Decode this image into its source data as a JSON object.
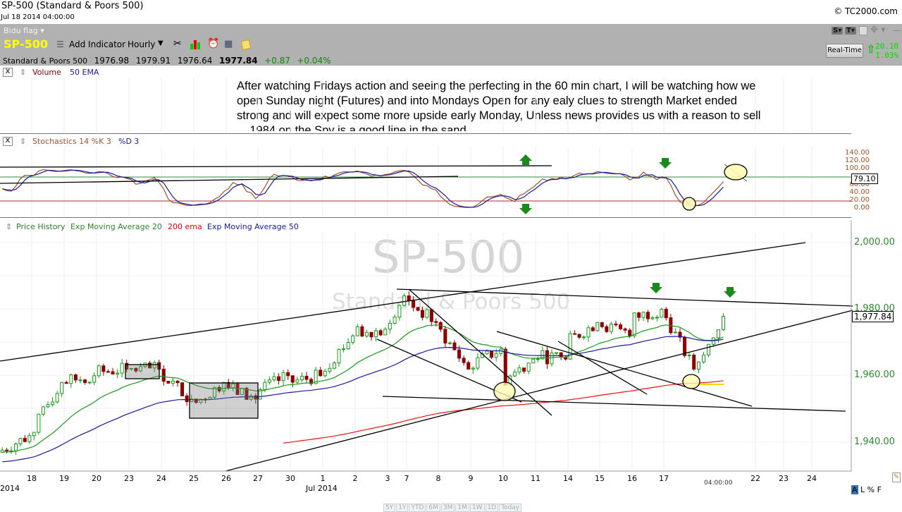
{
  "header": {
    "title": "SP-500 (Standard & Poors 500)",
    "datetime": "Jul 18 2014 04:00:00",
    "copyright": "© TC2000.com"
  },
  "toolbar": {
    "layout": "Bidu flag ▾",
    "symbol": "SP-500",
    "add_indicator": "Add Indicator",
    "timeframe": "Hourly",
    "realtime": "Real-Time",
    "change_pts": "20.10",
    "change_pct": "1.03%",
    "s_btn": "S▾",
    "t_btn": "T▾"
  },
  "quote": {
    "name": "Standard & Poors 500",
    "open": "1976.98",
    "high": "1979.91",
    "low": "1976.64",
    "last": "1977.84",
    "change": "+0.87",
    "change_pct": "+0.04%"
  },
  "volume_pane": {
    "label": "Volume",
    "ema": "50 EMA"
  },
  "note": "After watching Fridays action and seeing the perfecting in the 60 min chart, I will be watching how we open Sunday night (Futures) and into Mondays  Open for any ealy clues to strength Market ended strong and will expect some more upside early Monday, Unless news provides us with a reason to sell ... 1984 on the Spy is a good line in the sand",
  "stoch_pane": {
    "label": "Stochastics 14 %K 3",
    "d_label": "%D 3",
    "ticks": [
      "140.00",
      "120.00",
      "100.00",
      "60.00",
      "40.00",
      "20.00",
      "0.00"
    ],
    "current": "79.10",
    "colors": {
      "k": "#a0522d",
      "d": "#1a1aa0"
    }
  },
  "price_pane": {
    "label": "Price History",
    "ema20": "Exp Moving Average 20",
    "ema200": "200 ema",
    "ema50": "Exp Moving Average 50",
    "watermark": "SP-500",
    "watermark_sub": "Standard & Poors 500",
    "ticks": [
      "2,000.00",
      "1,980.00",
      "1,960.00",
      "1,940.00"
    ],
    "current": "1,977.84"
  },
  "xaxis": {
    "days": [
      "18",
      "19",
      "20",
      "23",
      "24",
      "25",
      "26",
      "27",
      "30",
      "1",
      "2",
      "3",
      "7",
      "8",
      "9",
      "10",
      "11",
      "14",
      "15",
      "16",
      "17",
      "22",
      "23",
      "24"
    ],
    "month_left": "2014",
    "month_mid": "Jul 2014",
    "cursor_time": "04:00:00"
  },
  "bottom": {
    "modes": [
      "A",
      "L",
      "%",
      "F"
    ],
    "ranges": [
      "5Y",
      "1Y",
      "YTD",
      "6M",
      "3M",
      "1M",
      "1W",
      "1D",
      "Today"
    ]
  },
  "chart_data": {
    "type": "candlestick",
    "title": "SP-500 Hourly",
    "ylim": [
      1933,
      2003
    ],
    "days": [
      "Jun 17",
      "Jun 18",
      "Jun 19",
      "Jun 20",
      "Jun 23",
      "Jun 24",
      "Jun 25",
      "Jun 26",
      "Jun 27",
      "Jun 30",
      "Jul 1",
      "Jul 2",
      "Jul 3",
      "Jul 7",
      "Jul 8",
      "Jul 9",
      "Jul 10",
      "Jul 11",
      "Jul 14",
      "Jul 15",
      "Jul 16",
      "Jul 17",
      "Jul 18"
    ],
    "open": [
      1937,
      1942,
      1958,
      1961,
      1962,
      1961,
      1951,
      1957,
      1955,
      1958,
      1961,
      1973,
      1975,
      1983,
      1975,
      1963,
      1958,
      1966,
      1970,
      1976,
      1977,
      1980,
      1960
    ],
    "close": [
      1942,
      1958,
      1960,
      1962,
      1962,
      1953,
      1958,
      1953,
      1960,
      1960,
      1972,
      1974,
      1984,
      1976,
      1962,
      1968,
      1965,
      1965,
      1976,
      1972,
      1980,
      1962,
      1977.84
    ]
  }
}
